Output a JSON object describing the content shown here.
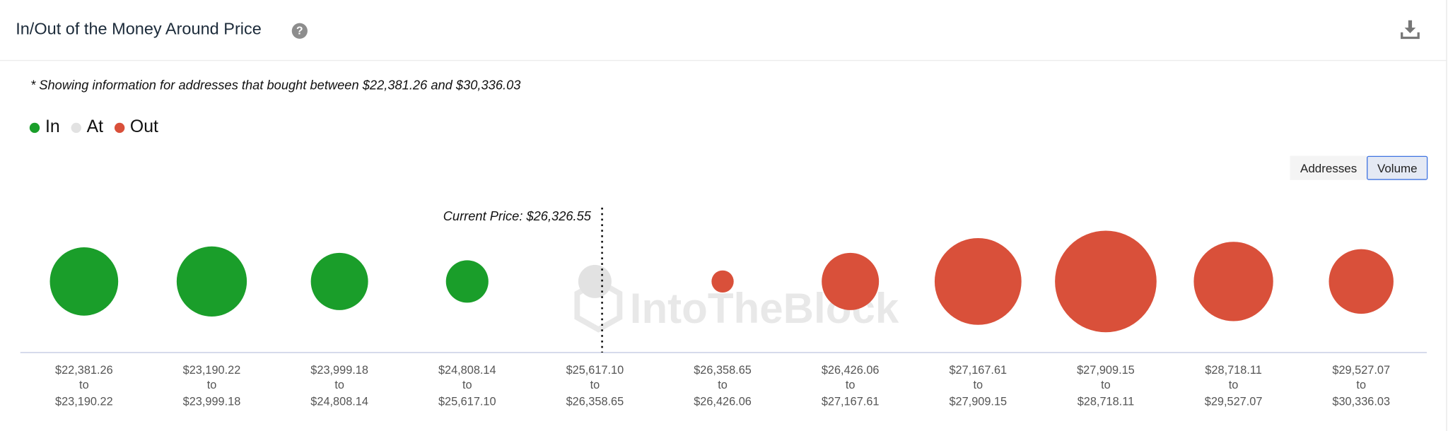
{
  "header": {
    "title": "In/Out of the Money Around Price",
    "help_icon": "question-circle-icon",
    "download_icon": "download-icon"
  },
  "note": "* Showing information for addresses that bought between $22,381.26 and $30,336.03",
  "toggle": {
    "options": [
      "Addresses",
      "Volume"
    ],
    "selected": "Volume"
  },
  "watermark": "IntoTheBlock",
  "chart_data": {
    "type": "bubble",
    "legend": [
      {
        "name": "In",
        "color": "#1a9e2a"
      },
      {
        "name": "At",
        "color": "#e2e2e2"
      },
      {
        "name": "Out",
        "color": "#d9503a"
      }
    ],
    "legend_placement": "top-left",
    "current_price_label": "Current Price: $26,326.55",
    "current_price": 26326.55,
    "buckets": [
      {
        "from": "$22,381.26",
        "to": "$23,190.22",
        "status": "In",
        "relative_size": 37
      },
      {
        "from": "$23,190.22",
        "to": "$23,999.18",
        "status": "In",
        "relative_size": 38
      },
      {
        "from": "$23,999.18",
        "to": "$24,808.14",
        "status": "In",
        "relative_size": 31
      },
      {
        "from": "$24,808.14",
        "to": "$25,617.10",
        "status": "In",
        "relative_size": 23
      },
      {
        "from": "$25,617.10",
        "to": "$26,358.65",
        "status": "At",
        "relative_size": 18
      },
      {
        "from": "$26,358.65",
        "to": "$26,426.06",
        "status": "Out",
        "relative_size": 12
      },
      {
        "from": "$26,426.06",
        "to": "$27,167.61",
        "status": "Out",
        "relative_size": 31
      },
      {
        "from": "$27,167.61",
        "to": "$27,909.15",
        "status": "Out",
        "relative_size": 47
      },
      {
        "from": "$27,909.15",
        "to": "$28,718.11",
        "status": "Out",
        "relative_size": 55
      },
      {
        "from": "$28,718.11",
        "to": "$29,527.07",
        "status": "Out",
        "relative_size": 43
      },
      {
        "from": "$29,527.07",
        "to": "$30,336.03",
        "status": "Out",
        "relative_size": 35
      }
    ],
    "to_word": "to"
  }
}
